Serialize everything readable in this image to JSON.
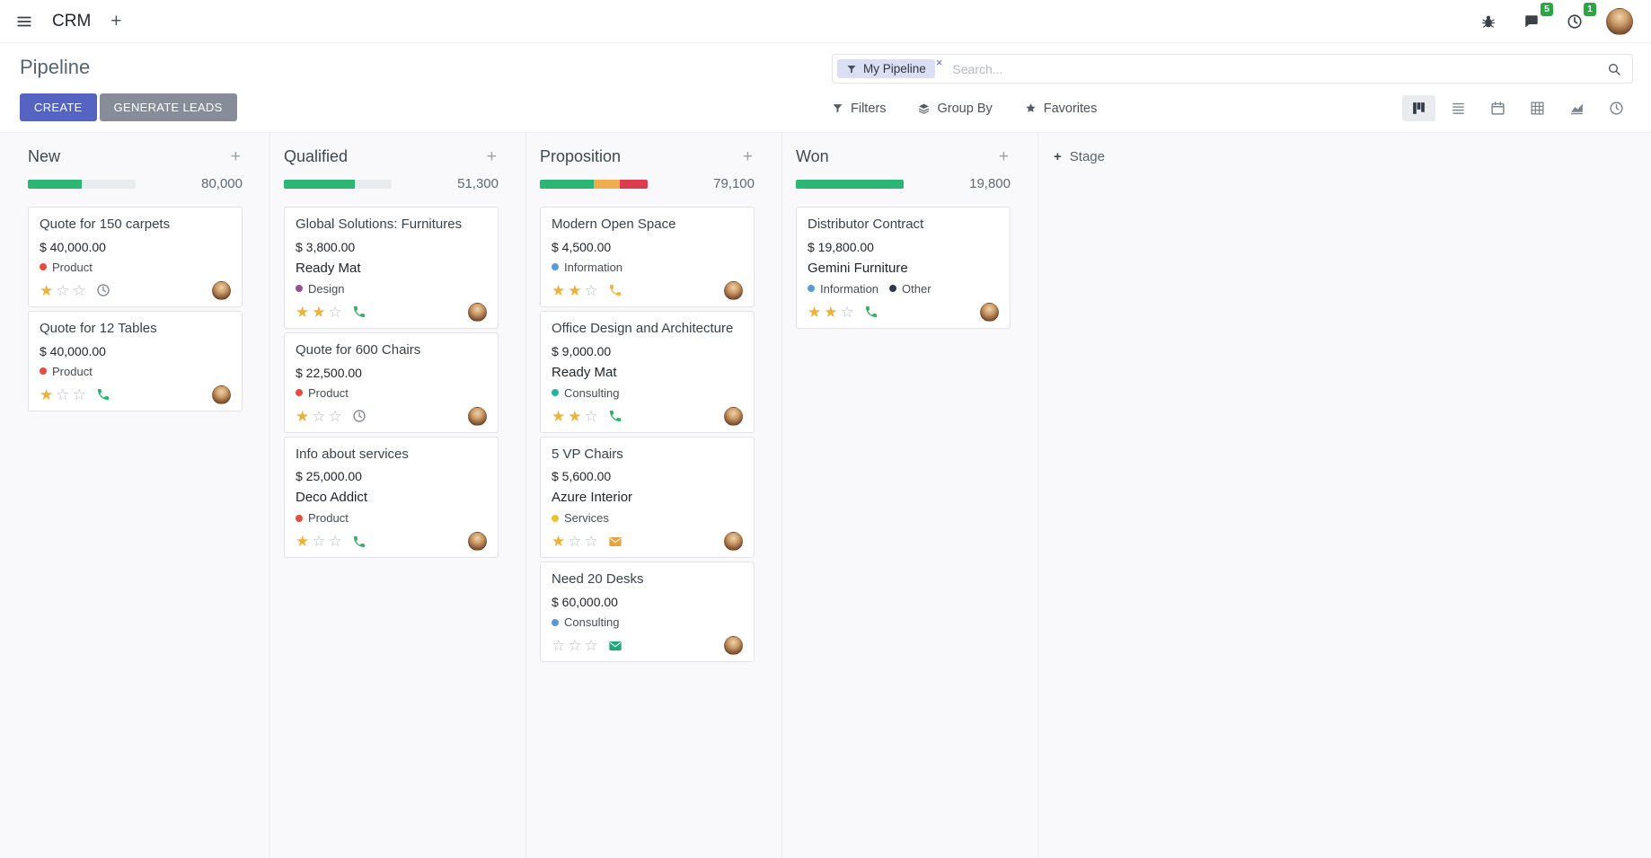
{
  "colors": {
    "accent": "#5564c0",
    "secondary_button": "#878d98",
    "badge": "#28a745",
    "star": "#efb139"
  },
  "navbar": {
    "app_name": "CRM",
    "message_badge": "5",
    "activity_badge": "1"
  },
  "control_panel": {
    "title": "Pipeline",
    "create_label": "CREATE",
    "generate_leads_label": "GENERATE LEADS",
    "filters_label": "Filters",
    "group_by_label": "Group By",
    "favorites_label": "Favorites",
    "search": {
      "facet_label": "My Pipeline",
      "placeholder": "Search..."
    }
  },
  "kanban": {
    "add_stage_label": "Stage",
    "columns": [
      {
        "name": "New",
        "total": "80,000",
        "progress": [
          {
            "color": "#2bb673",
            "pct": 50
          }
        ],
        "cards": [
          {
            "title": "Quote for 150 carpets",
            "amount": "$ 40,000.00",
            "tags": [
              {
                "label": "Product",
                "color": "#e74c3c"
              }
            ],
            "stars": 1,
            "activity": {
              "type": "clock",
              "color": "#8a9199"
            }
          },
          {
            "title": "Quote for 12 Tables",
            "amount": "$ 40,000.00",
            "tags": [
              {
                "label": "Product",
                "color": "#e74c3c"
              }
            ],
            "stars": 1,
            "activity": {
              "type": "phone",
              "color": "#28b463"
            }
          }
        ]
      },
      {
        "name": "Qualified",
        "total": "51,300",
        "progress": [
          {
            "color": "#2bb673",
            "pct": 66
          }
        ],
        "cards": [
          {
            "title": "Global Solutions: Furnitures",
            "amount": "$ 3,800.00",
            "partner": "Ready Mat",
            "tags": [
              {
                "label": "Design",
                "color": "#9b4d96"
              }
            ],
            "stars": 2,
            "activity": {
              "type": "phone",
              "color": "#28b463"
            }
          },
          {
            "title": "Quote for 600 Chairs",
            "amount": "$ 22,500.00",
            "tags": [
              {
                "label": "Product",
                "color": "#e74c3c"
              }
            ],
            "stars": 1,
            "activity": {
              "type": "clock",
              "color": "#8a9199"
            }
          },
          {
            "title": "Info about services",
            "amount": "$ 25,000.00",
            "partner": "Deco Addict",
            "tags": [
              {
                "label": "Product",
                "color": "#e74c3c"
              }
            ],
            "stars": 1,
            "activity": {
              "type": "phone",
              "color": "#28b463"
            }
          }
        ]
      },
      {
        "name": "Proposition",
        "total": "79,100",
        "progress": [
          {
            "color": "#2bb673",
            "pct": 50
          },
          {
            "color": "#f0ad4e",
            "pct": 24
          },
          {
            "color": "#dd3b50",
            "pct": 26
          }
        ],
        "cards": [
          {
            "title": "Modern Open Space",
            "amount": "$ 4,500.00",
            "tags": [
              {
                "label": "Information",
                "color": "#5b9bd5"
              }
            ],
            "stars": 2,
            "activity": {
              "type": "phone",
              "color": "#f5b041"
            }
          },
          {
            "title": "Office Design and Architecture",
            "amount": "$ 9,000.00",
            "partner": "Ready Mat",
            "tags": [
              {
                "label": "Consulting",
                "color": "#25b3a2"
              }
            ],
            "stars": 2,
            "activity": {
              "type": "phone",
              "color": "#28b463"
            }
          },
          {
            "title": "5 VP Chairs",
            "amount": "$ 5,600.00",
            "partner": "Azure Interior",
            "tags": [
              {
                "label": "Services",
                "color": "#eec12e"
              }
            ],
            "stars": 1,
            "activity": {
              "type": "envelope",
              "color": "#e8a33d"
            }
          },
          {
            "title": "Need 20 Desks",
            "amount": "$ 60,000.00",
            "tags": [
              {
                "label": "Consulting",
                "color": "#5b9bd5"
              }
            ],
            "stars": 0,
            "activity": {
              "type": "envelope",
              "color": "#20a87a"
            }
          }
        ]
      },
      {
        "name": "Won",
        "total": "19,800",
        "progress": [
          {
            "color": "#2bb673",
            "pct": 100
          }
        ],
        "cards": [
          {
            "title": "Distributor Contract",
            "amount": "$ 19,800.00",
            "partner": "Gemini Furniture",
            "tags": [
              {
                "label": "Information",
                "color": "#5b9bd5"
              },
              {
                "label": "Other",
                "color": "#31394d"
              }
            ],
            "stars": 2,
            "activity": {
              "type": "phone",
              "color": "#28b463"
            }
          }
        ]
      }
    ]
  }
}
